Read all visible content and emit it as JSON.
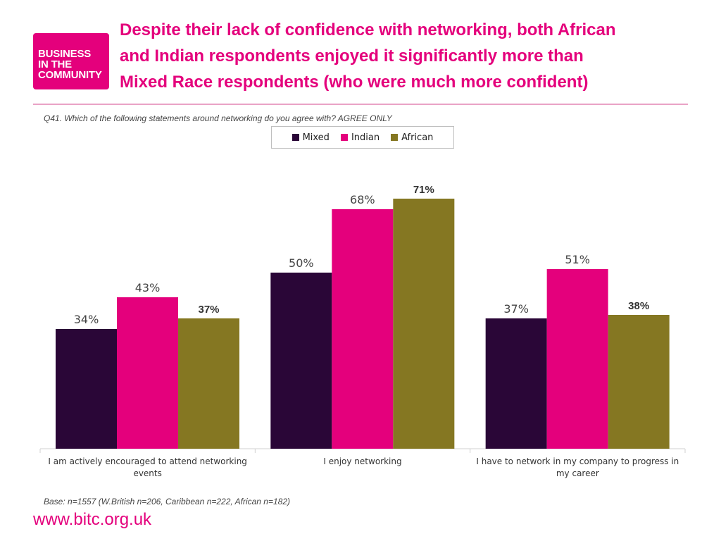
{
  "logo": {
    "line1": "BUSINESS",
    "line2": "IN THE",
    "line3": "COMMUNITY"
  },
  "title_lines": [
    "Despite their lack of confidence with networking, both African",
    "and Indian respondents enjoyed it significantly more than",
    "Mixed Race respondents (who were much more confident)"
  ],
  "question": "Q41. Which of the following statements around networking do you agree with? AGREE ONLY",
  "base_note": "Base: n=1557 (W.British n=206, Caribbean n=222, African n=182)",
  "url": "www.bitc.org.uk",
  "colors": {
    "brand": "#e4007c",
    "rule": "#e9a3c6"
  },
  "chart_data": {
    "type": "bar",
    "categories": [
      [
        "I am actively encouraged to attend networking",
        "events"
      ],
      [
        "I enjoy networking"
      ],
      [
        "I have to network in my company to progress in",
        "my career"
      ]
    ],
    "series": [
      {
        "name": "Mixed",
        "color": "#2a0637",
        "values": [
          34,
          50,
          37
        ],
        "labels": [
          "34%",
          "50%",
          "37%"
        ]
      },
      {
        "name": "Indian",
        "color": "#e4007c",
        "values": [
          43,
          68,
          51
        ],
        "labels": [
          "43%",
          "68%",
          "51%"
        ]
      },
      {
        "name": "African",
        "color": "#857722",
        "values": [
          37,
          71,
          38
        ],
        "labels": [
          "37%",
          "71%",
          "38%"
        ]
      }
    ],
    "ylim": [
      0,
      100
    ],
    "grid": false,
    "legend": "top-center"
  }
}
